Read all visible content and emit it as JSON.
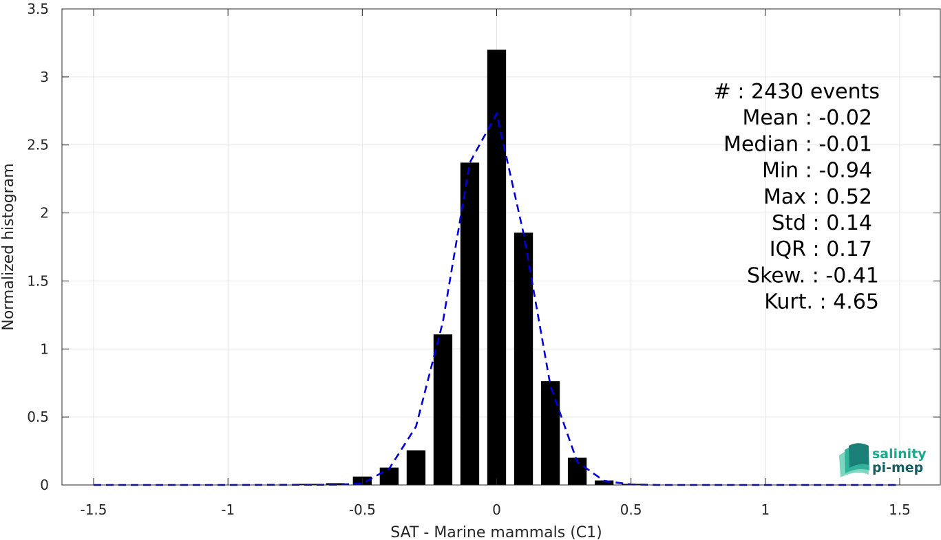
{
  "chart_data": {
    "type": "bar",
    "xlabel": "SAT - Marine mammals (C1)",
    "ylabel": "Normalized histogram",
    "xlim": [
      -1.6,
      1.6
    ],
    "ylim": [
      0,
      3.5
    ],
    "xticks": [
      -1.5,
      -1,
      -0.5,
      0,
      0.5,
      1,
      1.5
    ],
    "xtick_labels": [
      "-1.5",
      "-1",
      "-0.5",
      "0",
      "0.5",
      "1",
      "1.5"
    ],
    "yticks": [
      0,
      0.5,
      1,
      1.5,
      2,
      2.5,
      3,
      3.5
    ],
    "ytick_labels": [
      "0",
      "0.5",
      "1",
      "1.5",
      "2",
      "2.5",
      "3",
      "3.5"
    ],
    "grid": true,
    "bar_color": "#000000",
    "bar_width": 0.07,
    "bars": {
      "x": [
        -1.5,
        -1.4,
        -1.3,
        -1.2,
        -1.1,
        -1.0,
        -0.9,
        -0.8,
        -0.7,
        -0.6,
        -0.5,
        -0.4,
        -0.3,
        -0.2,
        -0.1,
        0.0,
        0.1,
        0.2,
        0.3,
        0.4,
        0.5,
        0.6,
        0.7,
        0.8,
        0.9,
        1.0,
        1.1,
        1.2,
        1.3,
        1.4,
        1.5
      ],
      "y": [
        0,
        0,
        0,
        0,
        0,
        0,
        0,
        0,
        0.008,
        0.013,
        0.062,
        0.128,
        0.255,
        1.107,
        2.37,
        3.2,
        1.855,
        0.763,
        0.2,
        0.033,
        0.008,
        0,
        0,
        0,
        0,
        0,
        0,
        0,
        0,
        0,
        0
      ]
    },
    "fit_curve": {
      "style": "dashed",
      "color": "#0000dd",
      "x": [
        -1.5,
        -1.0,
        -0.6,
        -0.5,
        -0.4,
        -0.3,
        -0.2,
        -0.1,
        0.0,
        0.1,
        0.2,
        0.3,
        0.4,
        0.5,
        0.6,
        1.0,
        1.5
      ],
      "y": [
        0,
        0,
        0.002,
        0.01,
        0.12,
        0.43,
        1.2,
        2.37,
        2.73,
        1.85,
        0.73,
        0.17,
        0.03,
        0.004,
        0,
        0,
        0
      ]
    },
    "stats": [
      {
        "label": "#  : 2430 events"
      },
      {
        "label": "Mean : -0.02"
      },
      {
        "label": "Median : -0.01"
      },
      {
        "label": "Min : -0.94"
      },
      {
        "label": "Max : 0.52"
      },
      {
        "label": "Std : 0.14"
      },
      {
        "label": "IQR : 0.17"
      },
      {
        "label": "Skew. : -0.41"
      },
      {
        "label": "Kurt. : 4.65"
      }
    ]
  },
  "logo": {
    "line1": "salinity",
    "line2": "pi-mep",
    "color1": "#1aa98e",
    "color2": "#135e63"
  }
}
